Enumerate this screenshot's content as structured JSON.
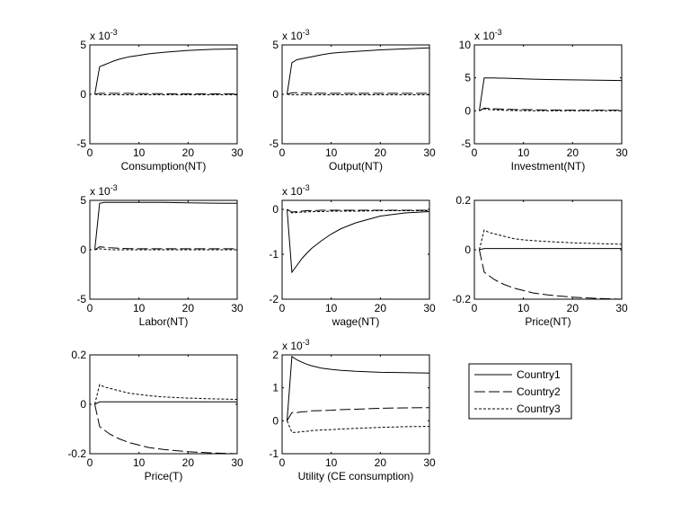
{
  "chart_data": [
    {
      "type": "line",
      "xlabel": "Consumption(NT)",
      "multiplier": "x 10",
      "multiplier_exp": "-3",
      "xlim": [
        0,
        30
      ],
      "ylim": [
        -5,
        5
      ],
      "xticks": [
        0,
        10,
        20,
        30
      ],
      "yticks": [
        -5,
        0,
        5
      ],
      "x": [
        1,
        2,
        3,
        4,
        5,
        6,
        8,
        10,
        12,
        15,
        20,
        25,
        30
      ],
      "series": [
        {
          "name": "Country1",
          "values": [
            0,
            2.8,
            3.0,
            3.2,
            3.4,
            3.55,
            3.8,
            3.95,
            4.1,
            4.25,
            4.45,
            4.55,
            4.6
          ]
        },
        {
          "name": "Country2",
          "values": [
            0,
            0.1,
            0.1,
            0.1,
            0.1,
            0.1,
            0.1,
            0.08,
            0.07,
            0.06,
            0.05,
            0.05,
            0.05
          ]
        },
        {
          "name": "Country3",
          "values": [
            0,
            -0.05,
            -0.05,
            -0.05,
            -0.05,
            -0.05,
            -0.05,
            -0.05,
            -0.05,
            -0.05,
            -0.05,
            -0.05,
            -0.05
          ]
        }
      ]
    },
    {
      "type": "line",
      "xlabel": "Output(NT)",
      "multiplier": "x 10",
      "multiplier_exp": "-3",
      "xlim": [
        0,
        30
      ],
      "ylim": [
        -5,
        5
      ],
      "xticks": [
        0,
        10,
        20,
        30
      ],
      "yticks": [
        -5,
        0,
        5
      ],
      "x": [
        1,
        2,
        3,
        4,
        5,
        6,
        8,
        10,
        12,
        15,
        20,
        25,
        30
      ],
      "series": [
        {
          "name": "Country1",
          "values": [
            0,
            3.2,
            3.5,
            3.6,
            3.7,
            3.8,
            4.0,
            4.15,
            4.25,
            4.35,
            4.5,
            4.6,
            4.7
          ]
        },
        {
          "name": "Country2",
          "values": [
            0,
            0.15,
            0.15,
            0.14,
            0.13,
            0.12,
            0.11,
            0.1,
            0.1,
            0.1,
            0.1,
            0.1,
            0.1
          ]
        },
        {
          "name": "Country3",
          "values": [
            0,
            -0.05,
            -0.05,
            -0.05,
            -0.05,
            -0.05,
            -0.05,
            -0.05,
            -0.05,
            -0.05,
            -0.05,
            -0.05,
            -0.05
          ]
        }
      ]
    },
    {
      "type": "line",
      "xlabel": "Investment(NT)",
      "multiplier": "x 10",
      "multiplier_exp": "-3",
      "xlim": [
        0,
        30
      ],
      "ylim": [
        -5,
        10
      ],
      "xticks": [
        0,
        10,
        20,
        30
      ],
      "yticks": [
        -5,
        0,
        5,
        10
      ],
      "x": [
        1,
        2,
        3,
        4,
        5,
        6,
        8,
        10,
        12,
        15,
        20,
        25,
        30
      ],
      "series": [
        {
          "name": "Country1",
          "values": [
            0,
            5,
            5,
            5,
            4.95,
            4.95,
            4.9,
            4.85,
            4.8,
            4.75,
            4.7,
            4.65,
            4.6
          ]
        },
        {
          "name": "Country2",
          "values": [
            0,
            0.4,
            0.35,
            0.3,
            0.28,
            0.25,
            0.2,
            0.18,
            0.15,
            0.12,
            0.1,
            0.1,
            0.1
          ]
        },
        {
          "name": "Country3",
          "values": [
            0,
            0.3,
            0.2,
            0.15,
            0.1,
            0.08,
            0.05,
            0.03,
            0.02,
            0.01,
            0,
            0,
            0
          ]
        }
      ]
    },
    {
      "type": "line",
      "xlabel": "Labor(NT)",
      "multiplier": "x 10",
      "multiplier_exp": "-3",
      "xlim": [
        0,
        30
      ],
      "ylim": [
        -5,
        5
      ],
      "xticks": [
        0,
        10,
        20,
        30
      ],
      "yticks": [
        -5,
        0,
        5
      ],
      "x": [
        1,
        2,
        3,
        4,
        5,
        6,
        8,
        10,
        12,
        15,
        20,
        25,
        30
      ],
      "series": [
        {
          "name": "Country1",
          "values": [
            0,
            4.7,
            4.8,
            4.8,
            4.8,
            4.8,
            4.8,
            4.8,
            4.8,
            4.8,
            4.75,
            4.72,
            4.7
          ]
        },
        {
          "name": "Country2",
          "values": [
            0,
            0.3,
            0.25,
            0.2,
            0.18,
            0.15,
            0.12,
            0.1,
            0.1,
            0.1,
            0.1,
            0.1,
            0.1
          ]
        },
        {
          "name": "Country3",
          "values": [
            0,
            0.1,
            0.05,
            0.02,
            0,
            0,
            0,
            0,
            0,
            0,
            0,
            0,
            0
          ]
        }
      ]
    },
    {
      "type": "line",
      "xlabel": "wage(NT)",
      "multiplier": "x 10",
      "multiplier_exp": "-3",
      "xlim": [
        0,
        30
      ],
      "ylim": [
        -2,
        0.2
      ],
      "xticks": [
        0,
        10,
        20,
        30
      ],
      "yticks": [
        -2,
        -1,
        0
      ],
      "x": [
        1,
        2,
        3,
        4,
        5,
        6,
        8,
        10,
        12,
        15,
        20,
        25,
        30
      ],
      "series": [
        {
          "name": "Country1",
          "values": [
            0,
            -1.4,
            -1.25,
            -1.1,
            -0.98,
            -0.87,
            -0.7,
            -0.55,
            -0.43,
            -0.3,
            -0.15,
            -0.08,
            -0.05
          ]
        },
        {
          "name": "Country2",
          "values": [
            0,
            -0.06,
            -0.05,
            -0.04,
            -0.03,
            -0.03,
            -0.02,
            -0.02,
            -0.02,
            -0.02,
            -0.02,
            -0.02,
            -0.02
          ]
        },
        {
          "name": "Country3",
          "values": [
            0,
            -0.08,
            -0.07,
            -0.06,
            -0.06,
            -0.05,
            -0.05,
            -0.04,
            -0.04,
            -0.04,
            -0.03,
            -0.03,
            -0.03
          ]
        }
      ]
    },
    {
      "type": "line",
      "xlabel": "Price(NT)",
      "xlim": [
        0,
        30
      ],
      "ylim": [
        -0.2,
        0.2
      ],
      "xticks": [
        0,
        10,
        20,
        30
      ],
      "yticks": [
        -0.2,
        0,
        0.2
      ],
      "x": [
        1,
        2,
        3,
        4,
        5,
        6,
        8,
        10,
        12,
        15,
        20,
        25,
        30
      ],
      "series": [
        {
          "name": "Country1",
          "values": [
            0,
            0.005,
            0.005,
            0.005,
            0.005,
            0.005,
            0.005,
            0.005,
            0.005,
            0.005,
            0.005,
            0.005,
            0.005
          ]
        },
        {
          "name": "Country2",
          "values": [
            0,
            -0.09,
            -0.105,
            -0.12,
            -0.13,
            -0.14,
            -0.155,
            -0.165,
            -0.175,
            -0.183,
            -0.192,
            -0.197,
            -0.2
          ]
        },
        {
          "name": "Country3",
          "values": [
            0,
            0.08,
            0.07,
            0.065,
            0.06,
            0.055,
            0.045,
            0.04,
            0.037,
            0.033,
            0.028,
            0.025,
            0.022
          ]
        }
      ]
    },
    {
      "type": "line",
      "xlabel": "Price(T)",
      "xlim": [
        0,
        30
      ],
      "ylim": [
        -0.2,
        0.2
      ],
      "xticks": [
        0,
        10,
        20,
        30
      ],
      "yticks": [
        -0.2,
        0,
        0.2
      ],
      "x": [
        1,
        2,
        3,
        4,
        5,
        6,
        8,
        10,
        12,
        15,
        20,
        25,
        30
      ],
      "series": [
        {
          "name": "Country1",
          "values": [
            0,
            0.01,
            0.01,
            0.01,
            0.01,
            0.01,
            0.01,
            0.01,
            0.01,
            0.01,
            0.01,
            0.01,
            0.01
          ]
        },
        {
          "name": "Country2",
          "values": [
            0,
            -0.09,
            -0.105,
            -0.12,
            -0.13,
            -0.14,
            -0.155,
            -0.165,
            -0.175,
            -0.183,
            -0.192,
            -0.197,
            -0.2
          ]
        },
        {
          "name": "Country3",
          "values": [
            0,
            0.08,
            0.07,
            0.065,
            0.06,
            0.055,
            0.045,
            0.04,
            0.035,
            0.03,
            0.025,
            0.022,
            0.02
          ]
        }
      ]
    },
    {
      "type": "line",
      "xlabel": "Utility (CE consumption)",
      "multiplier": "x 10",
      "multiplier_exp": "-3",
      "xlim": [
        0,
        30
      ],
      "ylim": [
        -1,
        2
      ],
      "xticks": [
        0,
        10,
        20,
        30
      ],
      "yticks": [
        -1,
        0,
        1,
        2
      ],
      "x": [
        1,
        2,
        3,
        4,
        5,
        6,
        8,
        10,
        12,
        15,
        20,
        25,
        30
      ],
      "series": [
        {
          "name": "Country1",
          "values": [
            0,
            1.95,
            1.85,
            1.78,
            1.72,
            1.67,
            1.6,
            1.56,
            1.53,
            1.5,
            1.47,
            1.46,
            1.45
          ]
        },
        {
          "name": "Country2",
          "values": [
            0,
            0.25,
            0.25,
            0.27,
            0.28,
            0.3,
            0.31,
            0.32,
            0.34,
            0.35,
            0.38,
            0.39,
            0.4
          ]
        },
        {
          "name": "Country3",
          "values": [
            0,
            -0.35,
            -0.35,
            -0.33,
            -0.32,
            -0.3,
            -0.28,
            -0.27,
            -0.25,
            -0.23,
            -0.2,
            -0.18,
            -0.17
          ]
        }
      ]
    }
  ],
  "legend": {
    "placement": "bottom-right",
    "entries": [
      {
        "label": "Country1",
        "style": "solid"
      },
      {
        "label": "Country2",
        "style": "dashed"
      },
      {
        "label": "Country3",
        "style": "dotted"
      }
    ]
  },
  "colors": {
    "line": "#000000",
    "background": "#ffffff"
  }
}
